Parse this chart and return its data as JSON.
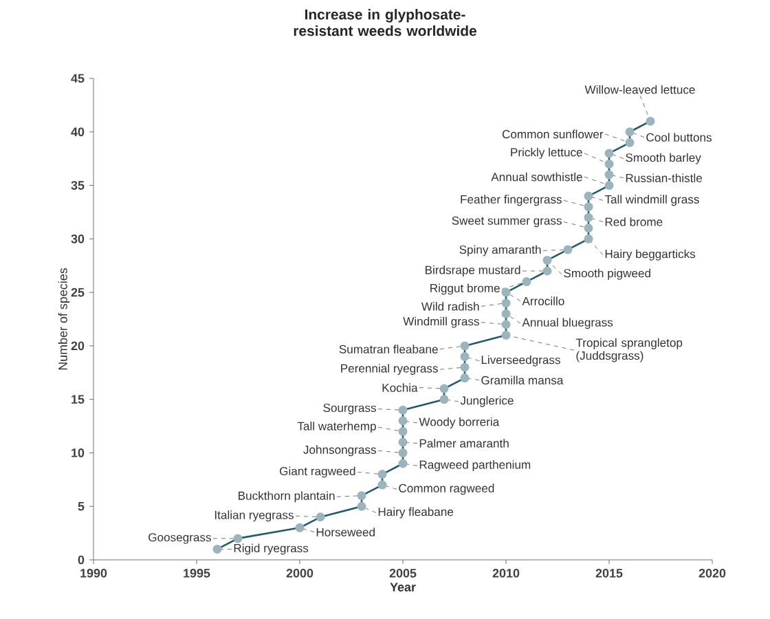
{
  "chart_data": {
    "type": "line",
    "title": "Increase in glyphosate-resistant weeds worldwide",
    "xlabel": "Year",
    "ylabel": "Number of species",
    "xlim": [
      1990,
      2020
    ],
    "xticks": [
      1990,
      1995,
      2000,
      2005,
      2010,
      2015,
      2020
    ],
    "ylim": [
      0,
      45
    ],
    "yticks": [
      0,
      5,
      10,
      15,
      20,
      25,
      30,
      35,
      40,
      45
    ],
    "grid": false,
    "marker": "circle",
    "line_style": "solid",
    "series": [
      {
        "color": "#24596b",
        "x": [
          1996,
          1997,
          2000,
          2001,
          2003,
          2003,
          2004,
          2004,
          2005,
          2005,
          2005,
          2005,
          2005,
          2005,
          2007,
          2007,
          2008,
          2008,
          2008,
          2008,
          2010,
          2010,
          2010,
          2010,
          2010,
          2011,
          2012,
          2012,
          2013,
          2014,
          2014,
          2014,
          2014,
          2014,
          2015,
          2015,
          2015,
          2015,
          2016,
          2016,
          2017
        ],
        "values": [
          1,
          2,
          3,
          4,
          5,
          6,
          7,
          8,
          9,
          10,
          11,
          12,
          13,
          14,
          15,
          16,
          17,
          18,
          19,
          20,
          21,
          22,
          23,
          24,
          25,
          26,
          27,
          28,
          29,
          30,
          31,
          32,
          33,
          34,
          35,
          36,
          37,
          38,
          39,
          40,
          41
        ]
      }
    ],
    "annotations": [
      {
        "text": "Rigid ryegrass",
        "x": 1996,
        "y": 1
      },
      {
        "text": "Goosegrass",
        "x": 1997,
        "y": 2
      },
      {
        "text": "Horseweed",
        "x": 2000,
        "y": 3
      },
      {
        "text": "Italian ryegrass",
        "x": 2001,
        "y": 4
      },
      {
        "text": "Hairy fleabane",
        "x": 2003,
        "y": 5
      },
      {
        "text": "Buckthorn plantain",
        "x": 2003,
        "y": 6
      },
      {
        "text": "Common ragweed",
        "x": 2004,
        "y": 7
      },
      {
        "text": "Giant ragweed",
        "x": 2004,
        "y": 8
      },
      {
        "text": "Ragweed parthenium",
        "x": 2005,
        "y": 9
      },
      {
        "text": "Johnsongrass",
        "x": 2005,
        "y": 10
      },
      {
        "text": "Palmer amaranth",
        "x": 2005,
        "y": 11
      },
      {
        "text": "Tall waterhemp",
        "x": 2005,
        "y": 12
      },
      {
        "text": "Woody borreria",
        "x": 2005,
        "y": 13
      },
      {
        "text": "Sourgrass",
        "x": 2005,
        "y": 14
      },
      {
        "text": "Junglerice",
        "x": 2007,
        "y": 15
      },
      {
        "text": "Kochia",
        "x": 2007,
        "y": 16
      },
      {
        "text": "Gramilla mansa",
        "x": 2008,
        "y": 17
      },
      {
        "text": "Perennial ryegrass",
        "x": 2008,
        "y": 18
      },
      {
        "text": "Liverseedgrass",
        "x": 2008,
        "y": 19
      },
      {
        "text": "Sumatran fleabane",
        "x": 2008,
        "y": 20
      },
      {
        "text": "Tropical sprangletop (Juddsgrass)",
        "x": 2010,
        "y": 21
      },
      {
        "text": "Windmill grass",
        "x": 2010,
        "y": 22
      },
      {
        "text": "Annual bluegrass",
        "x": 2010,
        "y": 23
      },
      {
        "text": "Wild radish",
        "x": 2010,
        "y": 24
      },
      {
        "text": "Arrocillo",
        "x": 2010,
        "y": 25
      },
      {
        "text": "Riggut brome",
        "x": 2011,
        "y": 26
      },
      {
        "text": "Birdsrape mustard",
        "x": 2012,
        "y": 27
      },
      {
        "text": "Smooth pigweed",
        "x": 2012,
        "y": 28
      },
      {
        "text": "Spiny amaranth",
        "x": 2013,
        "y": 29
      },
      {
        "text": "Hairy beggarticks",
        "x": 2014,
        "y": 30
      },
      {
        "text": "Sweet summer grass",
        "x": 2014,
        "y": 31
      },
      {
        "text": "Red brome",
        "x": 2014,
        "y": 32
      },
      {
        "text": "Feather fingergrass",
        "x": 2014,
        "y": 33
      },
      {
        "text": "Tall windmill grass",
        "x": 2014,
        "y": 34
      },
      {
        "text": "Annual sowthistle",
        "x": 2015,
        "y": 35
      },
      {
        "text": "Russian-thistle",
        "x": 2015,
        "y": 36
      },
      {
        "text": "Prickly lettuce",
        "x": 2015,
        "y": 37
      },
      {
        "text": "Smooth barley",
        "x": 2015,
        "y": 38
      },
      {
        "text": "Common sunflower",
        "x": 2016,
        "y": 39
      },
      {
        "text": "Cool buttons",
        "x": 2016,
        "y": 40
      },
      {
        "text": "Willow-leaved lettuce",
        "x": 2017,
        "y": 41
      }
    ]
  }
}
